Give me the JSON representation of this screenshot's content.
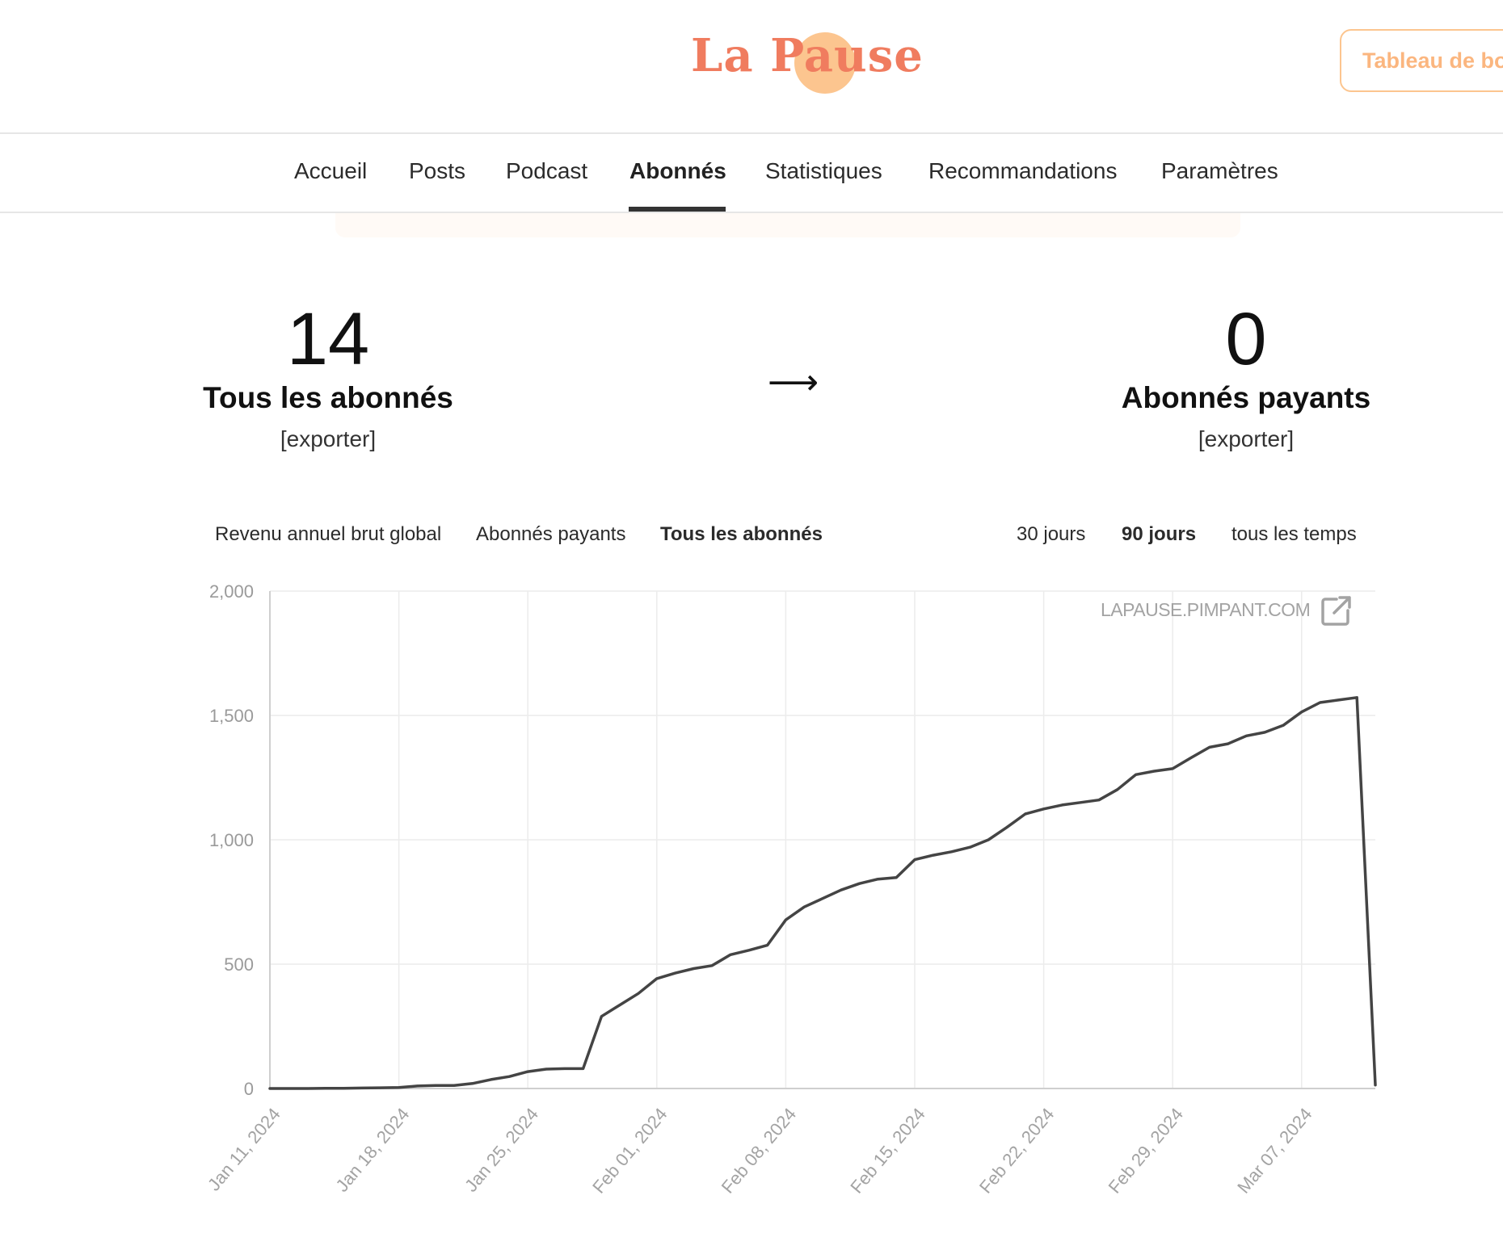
{
  "header": {
    "logo_text": "La Pause",
    "dashboard_button": "Tableau de bord"
  },
  "nav": {
    "items": [
      {
        "label": "Accueil",
        "active": false
      },
      {
        "label": "Posts",
        "active": false
      },
      {
        "label": "Podcast",
        "active": false
      },
      {
        "label": "Abonnés",
        "active": true
      },
      {
        "label": "Statistiques",
        "active": false
      },
      {
        "label": "Recommandations",
        "active": false
      },
      {
        "label": "Paramètres",
        "active": false
      }
    ]
  },
  "stats": {
    "all": {
      "value": "14",
      "label": "Tous les abonnés",
      "export": "[exporter]"
    },
    "arrow": "⟶",
    "paid": {
      "value": "0",
      "label": "Abonnés payants",
      "export": "[exporter]"
    }
  },
  "chart_tabs": {
    "metrics": [
      {
        "label": "Revenu annuel brut global",
        "active": false
      },
      {
        "label": "Abonnés payants",
        "active": false
      },
      {
        "label": "Tous les abonnés",
        "active": true
      }
    ],
    "ranges": [
      {
        "label": "30 jours",
        "active": false
      },
      {
        "label": "90 jours",
        "active": true
      },
      {
        "label": "tous les temps",
        "active": false
      }
    ]
  },
  "watermark": "LAPAUSE.PIMPANT.COM",
  "icons": {
    "external_link": "external-link-icon"
  },
  "colors": {
    "brand": "#f07c5f",
    "brand_light": "#fcc58f",
    "line": "#444444"
  },
  "chart_data": {
    "type": "line",
    "title": "",
    "xlabel": "",
    "ylabel": "",
    "ylim": [
      0,
      2000
    ],
    "yticks": [
      "0",
      "500",
      "1,000",
      "1,500",
      "2,000"
    ],
    "xtick_labels": [
      "Jan 11, 2024",
      "Jan 18, 2024",
      "Jan 25, 2024",
      "Feb 01, 2024",
      "Feb 08, 2024",
      "Feb 15, 2024",
      "Feb 22, 2024",
      "Feb 29, 2024",
      "Mar 07, 2024"
    ],
    "x_start": "2024-01-11",
    "x_end": "2024-03-11",
    "grid": true,
    "series": [
      {
        "color": "#444444",
        "points": [
          [
            "2024-01-11",
            0
          ],
          [
            "2024-01-12",
            0
          ],
          [
            "2024-01-13",
            0
          ],
          [
            "2024-01-14",
            1
          ],
          [
            "2024-01-15",
            1
          ],
          [
            "2024-01-16",
            2
          ],
          [
            "2024-01-17",
            3
          ],
          [
            "2024-01-18",
            4
          ],
          [
            "2024-01-19",
            10
          ],
          [
            "2024-01-20",
            12
          ],
          [
            "2024-01-21",
            12
          ],
          [
            "2024-01-22",
            20
          ],
          [
            "2024-01-23",
            36
          ],
          [
            "2024-01-24",
            48
          ],
          [
            "2024-01-25",
            68
          ],
          [
            "2024-01-26",
            78
          ],
          [
            "2024-01-27",
            80
          ],
          [
            "2024-01-28",
            80
          ],
          [
            "2024-01-29",
            290
          ],
          [
            "2024-01-30",
            336
          ],
          [
            "2024-01-31",
            382
          ],
          [
            "2024-02-01",
            442
          ],
          [
            "2024-02-02",
            464
          ],
          [
            "2024-02-03",
            482
          ],
          [
            "2024-02-04",
            494
          ],
          [
            "2024-02-05",
            538
          ],
          [
            "2024-02-06",
            556
          ],
          [
            "2024-02-07",
            576
          ],
          [
            "2024-02-08",
            678
          ],
          [
            "2024-02-09",
            730
          ],
          [
            "2024-02-10",
            764
          ],
          [
            "2024-02-11",
            798
          ],
          [
            "2024-02-12",
            824
          ],
          [
            "2024-02-13",
            842
          ],
          [
            "2024-02-14",
            848
          ],
          [
            "2024-02-15",
            920
          ],
          [
            "2024-02-16",
            938
          ],
          [
            "2024-02-17",
            952
          ],
          [
            "2024-02-18",
            970
          ],
          [
            "2024-02-19",
            1000
          ],
          [
            "2024-02-20",
            1050
          ],
          [
            "2024-02-21",
            1104
          ],
          [
            "2024-02-22",
            1124
          ],
          [
            "2024-02-23",
            1140
          ],
          [
            "2024-02-24",
            1150
          ],
          [
            "2024-02-25",
            1160
          ],
          [
            "2024-02-26",
            1202
          ],
          [
            "2024-02-27",
            1262
          ],
          [
            "2024-02-28",
            1276
          ],
          [
            "2024-02-29",
            1286
          ],
          [
            "2024-03-01",
            1330
          ],
          [
            "2024-03-02",
            1372
          ],
          [
            "2024-03-03",
            1386
          ],
          [
            "2024-03-04",
            1418
          ],
          [
            "2024-03-05",
            1432
          ],
          [
            "2024-03-06",
            1460
          ],
          [
            "2024-03-07",
            1514
          ],
          [
            "2024-03-08",
            1552
          ],
          [
            "2024-03-09",
            1562
          ],
          [
            "2024-03-10",
            1572
          ],
          [
            "2024-03-11",
            14
          ]
        ]
      }
    ]
  }
}
